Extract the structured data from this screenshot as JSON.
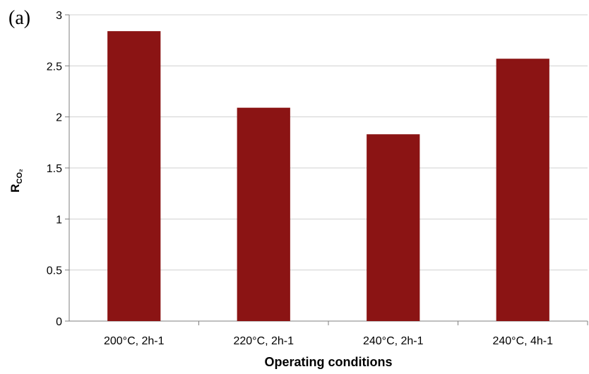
{
  "chart_data": {
    "type": "bar",
    "panel_label": "(a)",
    "categories": [
      "200°C, 2h-1",
      "220°C, 2h-1",
      "240°C, 2h-1",
      "240°C, 4h-1"
    ],
    "values": [
      2.84,
      2.09,
      1.83,
      2.57
    ],
    "ylim": [
      0,
      3
    ],
    "yticks": [
      "0",
      "0.5",
      "1",
      "1.5",
      "2",
      "2.5",
      "3"
    ],
    "ylabel": {
      "main": "R",
      "subscript": "CO₂"
    },
    "xlabel": "Operating conditions",
    "grid": true,
    "bar_color": "#8b1414",
    "grid_color": "#d0d0d0"
  }
}
